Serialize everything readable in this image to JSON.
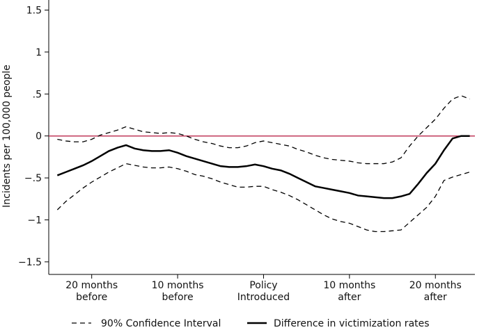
{
  "chart_data": {
    "type": "line",
    "y_label": "Incidents per 100,000 people",
    "x": [
      -24,
      -23,
      -22,
      -21,
      -20,
      -19,
      -18,
      -17,
      -16,
      -15,
      -14,
      -13,
      -12,
      -11,
      -10,
      -9,
      -8,
      -7,
      -6,
      -5,
      -4,
      -3,
      -2,
      -1,
      0,
      1,
      2,
      3,
      4,
      5,
      6,
      7,
      8,
      9,
      10,
      11,
      12,
      13,
      14,
      15,
      16,
      17,
      18,
      19,
      20,
      21,
      22,
      23,
      24
    ],
    "series": [
      {
        "name": "90% Confidence Interval",
        "color": "#000000",
        "style": "dashed",
        "values": [
          -0.04,
          -0.06,
          -0.07,
          -0.07,
          -0.04,
          0.01,
          0.04,
          0.07,
          0.11,
          0.08,
          0.05,
          0.04,
          0.03,
          0.04,
          0.03,
          0.0,
          -0.04,
          -0.07,
          -0.09,
          -0.12,
          -0.14,
          -0.14,
          -0.12,
          -0.08,
          -0.06,
          -0.08,
          -0.1,
          -0.12,
          -0.16,
          -0.19,
          -0.23,
          -0.26,
          -0.28,
          -0.29,
          -0.3,
          -0.32,
          -0.33,
          -0.33,
          -0.33,
          -0.31,
          -0.26,
          -0.12,
          0.0,
          0.1,
          0.2,
          0.33,
          0.44,
          0.48,
          0.44
        ],
        "lower": [
          -0.88,
          -0.78,
          -0.7,
          -0.62,
          -0.55,
          -0.49,
          -0.43,
          -0.38,
          -0.33,
          -0.35,
          -0.37,
          -0.38,
          -0.38,
          -0.37,
          -0.39,
          -0.42,
          -0.46,
          -0.48,
          -0.51,
          -0.55,
          -0.58,
          -0.61,
          -0.61,
          -0.6,
          -0.6,
          -0.64,
          -0.67,
          -0.71,
          -0.76,
          -0.82,
          -0.88,
          -0.94,
          -0.99,
          -1.02,
          -1.04,
          -1.08,
          -1.12,
          -1.14,
          -1.14,
          -1.13,
          -1.12,
          -1.03,
          -0.94,
          -0.85,
          -0.72,
          -0.53,
          -0.49,
          -0.46,
          -0.43
        ]
      },
      {
        "name": "Difference in victimization rates",
        "color": "#000000",
        "style": "solid",
        "values": [
          -0.47,
          -0.43,
          -0.39,
          -0.35,
          -0.3,
          -0.24,
          -0.18,
          -0.14,
          -0.11,
          -0.15,
          -0.17,
          -0.18,
          -0.18,
          -0.17,
          -0.2,
          -0.24,
          -0.27,
          -0.3,
          -0.33,
          -0.36,
          -0.37,
          -0.37,
          -0.36,
          -0.34,
          -0.36,
          -0.39,
          -0.41,
          -0.45,
          -0.5,
          -0.55,
          -0.6,
          -0.62,
          -0.64,
          -0.66,
          -0.68,
          -0.71,
          -0.72,
          -0.73,
          -0.74,
          -0.74,
          -0.72,
          -0.69,
          -0.57,
          -0.44,
          -0.33,
          -0.17,
          -0.03,
          0.0,
          0.0
        ]
      }
    ],
    "reference_line": {
      "value": 0,
      "color": "#c0395a"
    },
    "xlim": [
      -25,
      24.6
    ],
    "ylim": [
      -1.65,
      1.62
    ],
    "xticks": [
      {
        "value": -20,
        "label": [
          "20 months",
          "before"
        ]
      },
      {
        "value": -10,
        "label": [
          "10 months",
          "before"
        ]
      },
      {
        "value": 0,
        "label": [
          "Policy",
          "Introduced"
        ]
      },
      {
        "value": 10,
        "label": [
          "10 months",
          "after"
        ]
      },
      {
        "value": 20,
        "label": [
          "20 months",
          "after"
        ]
      }
    ],
    "yticks": [
      1.5,
      1,
      {
        "value": 0.5,
        "label": ".5"
      },
      0,
      {
        "value": -0.5,
        "label": "−.5"
      },
      {
        "value": -1,
        "label": "−1"
      },
      {
        "value": -1.5,
        "label": "−1.5"
      }
    ],
    "grid": false
  }
}
